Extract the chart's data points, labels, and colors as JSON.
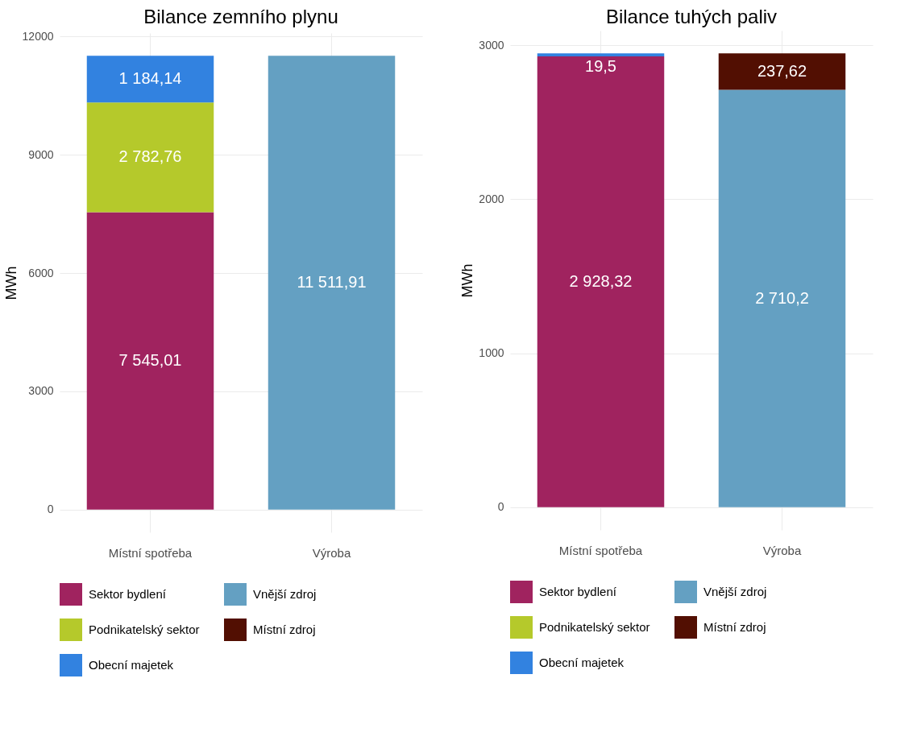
{
  "chart_data": [
    {
      "type": "bar",
      "title": "Bilance zemního plynu",
      "ylabel": "MWh",
      "categories": [
        "Místní spotřeba",
        "Výroba"
      ],
      "stacked": true,
      "grid": true,
      "legend": "bottom",
      "ylim": [
        -575.6,
        12087.5
      ],
      "yticks": [
        0,
        3000,
        6000,
        9000,
        12000
      ],
      "series": [
        {
          "name": "Sektor bydlení",
          "color": "#a0235f",
          "values": [
            7545.01,
            null
          ],
          "value_labels": [
            "7 545,01",
            null
          ]
        },
        {
          "name": "Podnikatelský sektor",
          "color": "#b5c92b",
          "values": [
            2782.76,
            null
          ],
          "value_labels": [
            "2 782,76",
            null
          ]
        },
        {
          "name": "Obecní majetek",
          "color": "#3282e0",
          "values": [
            1184.14,
            null
          ],
          "value_labels": [
            "1 184,14",
            null
          ]
        },
        {
          "name": "Vnější zdroj",
          "color": "#64a0c2",
          "values": [
            null,
            11511.91
          ],
          "value_labels": [
            null,
            "11 511,91"
          ]
        },
        {
          "name": "Místní zdroj",
          "color": "#520f02",
          "values": [
            null,
            null
          ],
          "value_labels": [
            null,
            null
          ]
        }
      ]
    },
    {
      "type": "bar",
      "title": "Bilance tuhých paliv",
      "ylabel": "MWh",
      "categories": [
        "Místní spotřeba",
        "Výroba"
      ],
      "stacked": true,
      "grid": true,
      "legend": "bottom",
      "ylim": [
        -147.4,
        3095.2
      ],
      "yticks": [
        0,
        1000,
        2000,
        3000
      ],
      "series": [
        {
          "name": "Sektor bydlení",
          "color": "#a0235f",
          "values": [
            2928.32,
            null
          ],
          "value_labels": [
            "2 928,32",
            null
          ]
        },
        {
          "name": "Podnikatelský sektor",
          "color": "#b5c92b",
          "values": [
            null,
            null
          ],
          "value_labels": [
            null,
            null
          ]
        },
        {
          "name": "Obecní majetek",
          "color": "#3282e0",
          "values": [
            19.5,
            null
          ],
          "value_labels": [
            "19,5",
            null
          ]
        },
        {
          "name": "Vnější zdroj",
          "color": "#64a0c2",
          "values": [
            null,
            2710.2
          ],
          "value_labels": [
            null,
            "2 710,2"
          ]
        },
        {
          "name": "Místní zdroj",
          "color": "#520f02",
          "values": [
            null,
            237.62
          ],
          "value_labels": [
            null,
            "237,62"
          ]
        }
      ]
    }
  ]
}
